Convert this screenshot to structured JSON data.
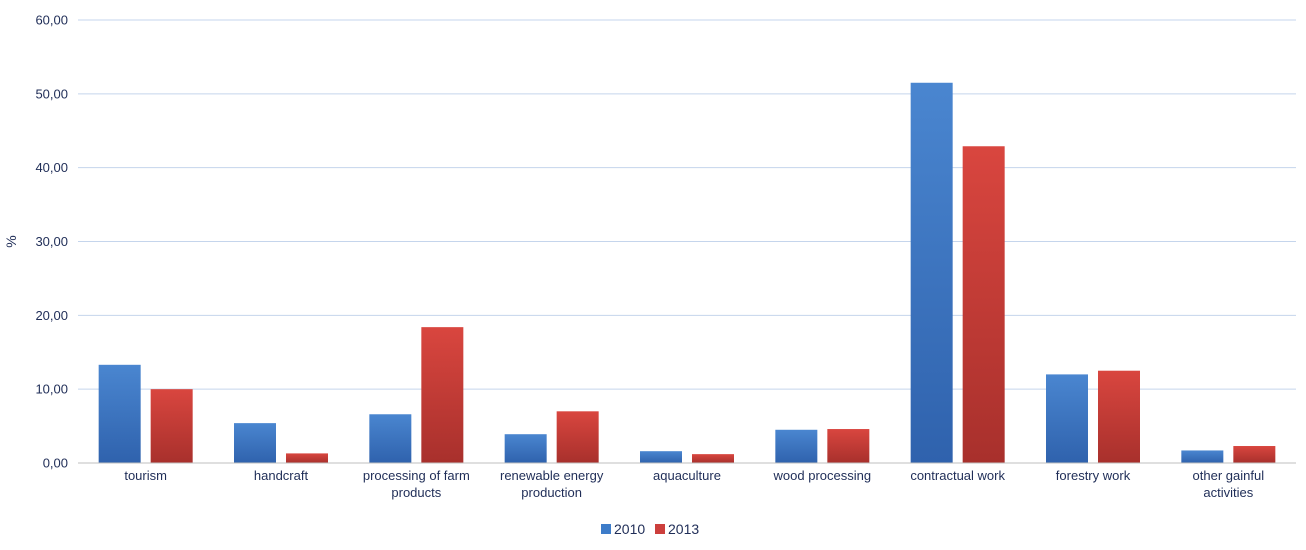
{
  "chart_data": {
    "type": "bar",
    "categories": [
      [
        "tourism"
      ],
      [
        "handcraft"
      ],
      [
        "processing of farm",
        "products"
      ],
      [
        "renewable energy",
        "production"
      ],
      [
        "aquaculture"
      ],
      [
        "wood processing"
      ],
      [
        "contractual work"
      ],
      [
        "forestry work"
      ],
      [
        "other gainful",
        "activities"
      ]
    ],
    "series": [
      {
        "name": "2010",
        "color": "#3d7cc9",
        "values": [
          13.3,
          5.4,
          6.6,
          3.9,
          1.6,
          4.5,
          51.5,
          12.0,
          1.7
        ]
      },
      {
        "name": "2013",
        "color": "#cc3f3c",
        "values": [
          10.0,
          1.3,
          18.4,
          7.0,
          1.2,
          4.6,
          42.9,
          12.5,
          2.3
        ]
      }
    ],
    "ylabel": "%",
    "ylim": [
      0,
      60
    ],
    "yticks": [
      "0,00",
      "10,00",
      "20,00",
      "30,00",
      "40,00",
      "50,00",
      "60,00"
    ],
    "grid": true,
    "legend_position": "bottom"
  }
}
